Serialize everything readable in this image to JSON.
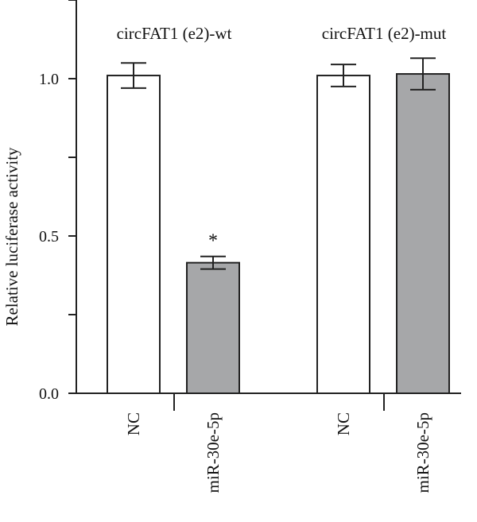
{
  "chart_data": {
    "type": "bar",
    "title": "",
    "xlabel": "",
    "ylabel": "Relative luciferase activity",
    "ylim": [
      0,
      1.25
    ],
    "yticks": [
      0.0,
      0.5,
      1.0
    ],
    "yticks_major_labels": [
      "0.0",
      "0.5",
      "1.0"
    ],
    "grid": false,
    "groups": [
      {
        "label": "circFAT1 (e2)-wt",
        "bars": [
          {
            "category": "NC",
            "value": 1.01,
            "error": 0.04,
            "color": "#ffffff",
            "annotation": ""
          },
          {
            "category": "miR-30e-5p",
            "value": 0.415,
            "error": 0.02,
            "color": "#a6a7a9",
            "annotation": "*"
          }
        ]
      },
      {
        "label": "circFAT1 (e2)-mut",
        "bars": [
          {
            "category": "NC",
            "value": 1.01,
            "error": 0.035,
            "color": "#ffffff",
            "annotation": ""
          },
          {
            "category": "miR-30e-5p",
            "value": 1.015,
            "error": 0.05,
            "color": "#a6a7a9",
            "annotation": ""
          }
        ]
      }
    ]
  }
}
